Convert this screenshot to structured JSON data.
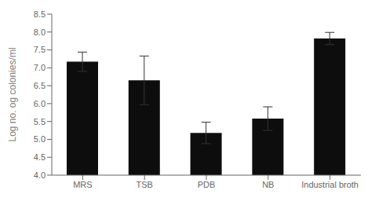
{
  "chart_data": {
    "type": "bar",
    "categories": [
      "MRS",
      "TSB",
      "PDB",
      "NB",
      "Industrial broth"
    ],
    "values": [
      7.17,
      6.65,
      5.18,
      5.58,
      7.82
    ],
    "errors": [
      0.27,
      0.68,
      0.3,
      0.33,
      0.17
    ],
    "color": "#0d0d0d",
    "ylabel": "Log no. og colonies/ml",
    "ylim": [
      4,
      8.5
    ],
    "yticks": [
      {
        "value": 4,
        "label": "4.0"
      },
      {
        "value": 4.5,
        "label": "4.5"
      },
      {
        "value": 5,
        "label": "5.0"
      },
      {
        "value": 5.5,
        "label": "5.5"
      },
      {
        "value": 6,
        "label": "6.0"
      },
      {
        "value": 6.5,
        "label": "6.5"
      },
      {
        "value": 7,
        "label": "7.0"
      },
      {
        "value": 7.5,
        "label": "7.5"
      },
      {
        "value": 8,
        "label": "8.0"
      },
      {
        "value": 8.5,
        "label": "8.5"
      }
    ],
    "grid": false
  }
}
